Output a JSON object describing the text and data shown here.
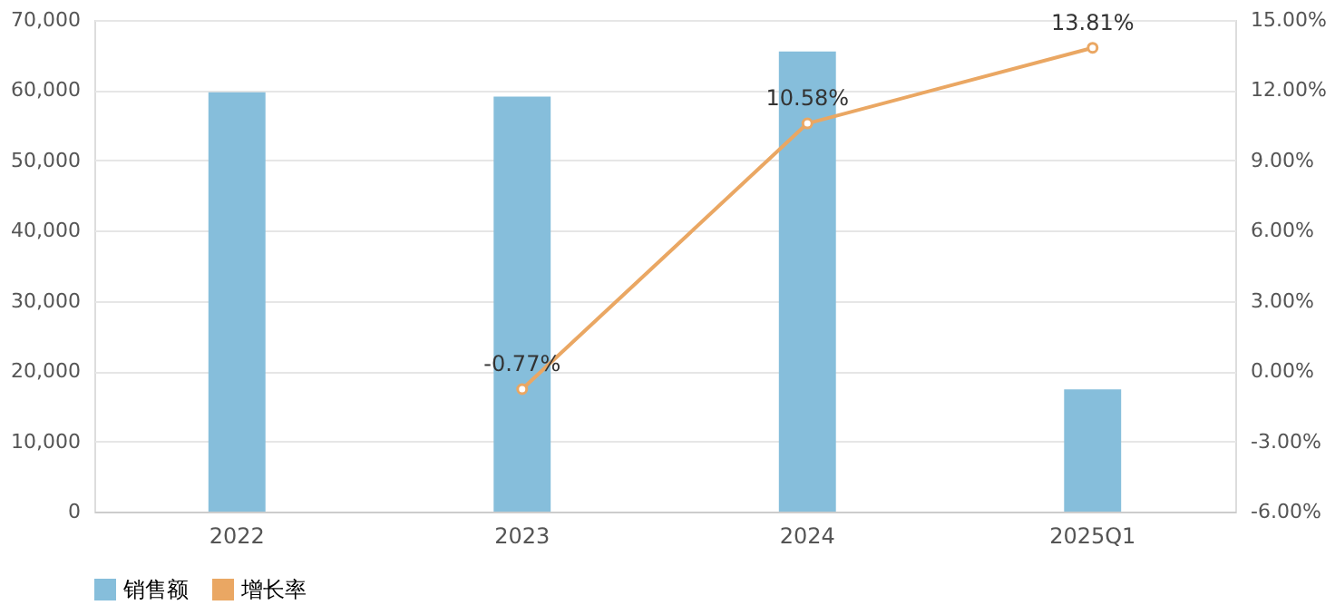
{
  "chart_data": {
    "type": "bar",
    "categories": [
      "2022",
      "2023",
      "2024",
      "2025Q1"
    ],
    "series": [
      {
        "name": "销售额",
        "type": "bar",
        "color": "#86bedb",
        "values": [
          59700,
          59100,
          65500,
          17400
        ]
      },
      {
        "name": "增长率",
        "type": "line",
        "axis": "y2",
        "color": "#eaa763",
        "marker": "circle",
        "values": [
          null,
          -0.77,
          10.58,
          13.81
        ],
        "value_labels": [
          null,
          "-0.77%",
          "10.58%",
          "13.81%"
        ]
      }
    ],
    "ylim": [
      0,
      70000
    ],
    "yticks": [
      {
        "value": 0,
        "label": "0"
      },
      {
        "value": 10000,
        "label": "10,000"
      },
      {
        "value": 20000,
        "label": "20,000"
      },
      {
        "value": 30000,
        "label": "30,000"
      },
      {
        "value": 40000,
        "label": "40,000"
      },
      {
        "value": 50000,
        "label": "50,000"
      },
      {
        "value": 60000,
        "label": "60,000"
      },
      {
        "value": 70000,
        "label": "70,000"
      }
    ],
    "y2lim": [
      -6,
      15
    ],
    "y2ticks": [
      {
        "value": -6,
        "label": "-6.00%"
      },
      {
        "value": -3,
        "label": "-3.00%"
      },
      {
        "value": 0,
        "label": "0.00%"
      },
      {
        "value": 3,
        "label": "3.00%"
      },
      {
        "value": 6,
        "label": "6.00%"
      },
      {
        "value": 9,
        "label": "9.00%"
      },
      {
        "value": 12,
        "label": "12.00%"
      },
      {
        "value": 15,
        "label": "15.00%"
      }
    ],
    "grid": "y",
    "legend": "bottom"
  }
}
